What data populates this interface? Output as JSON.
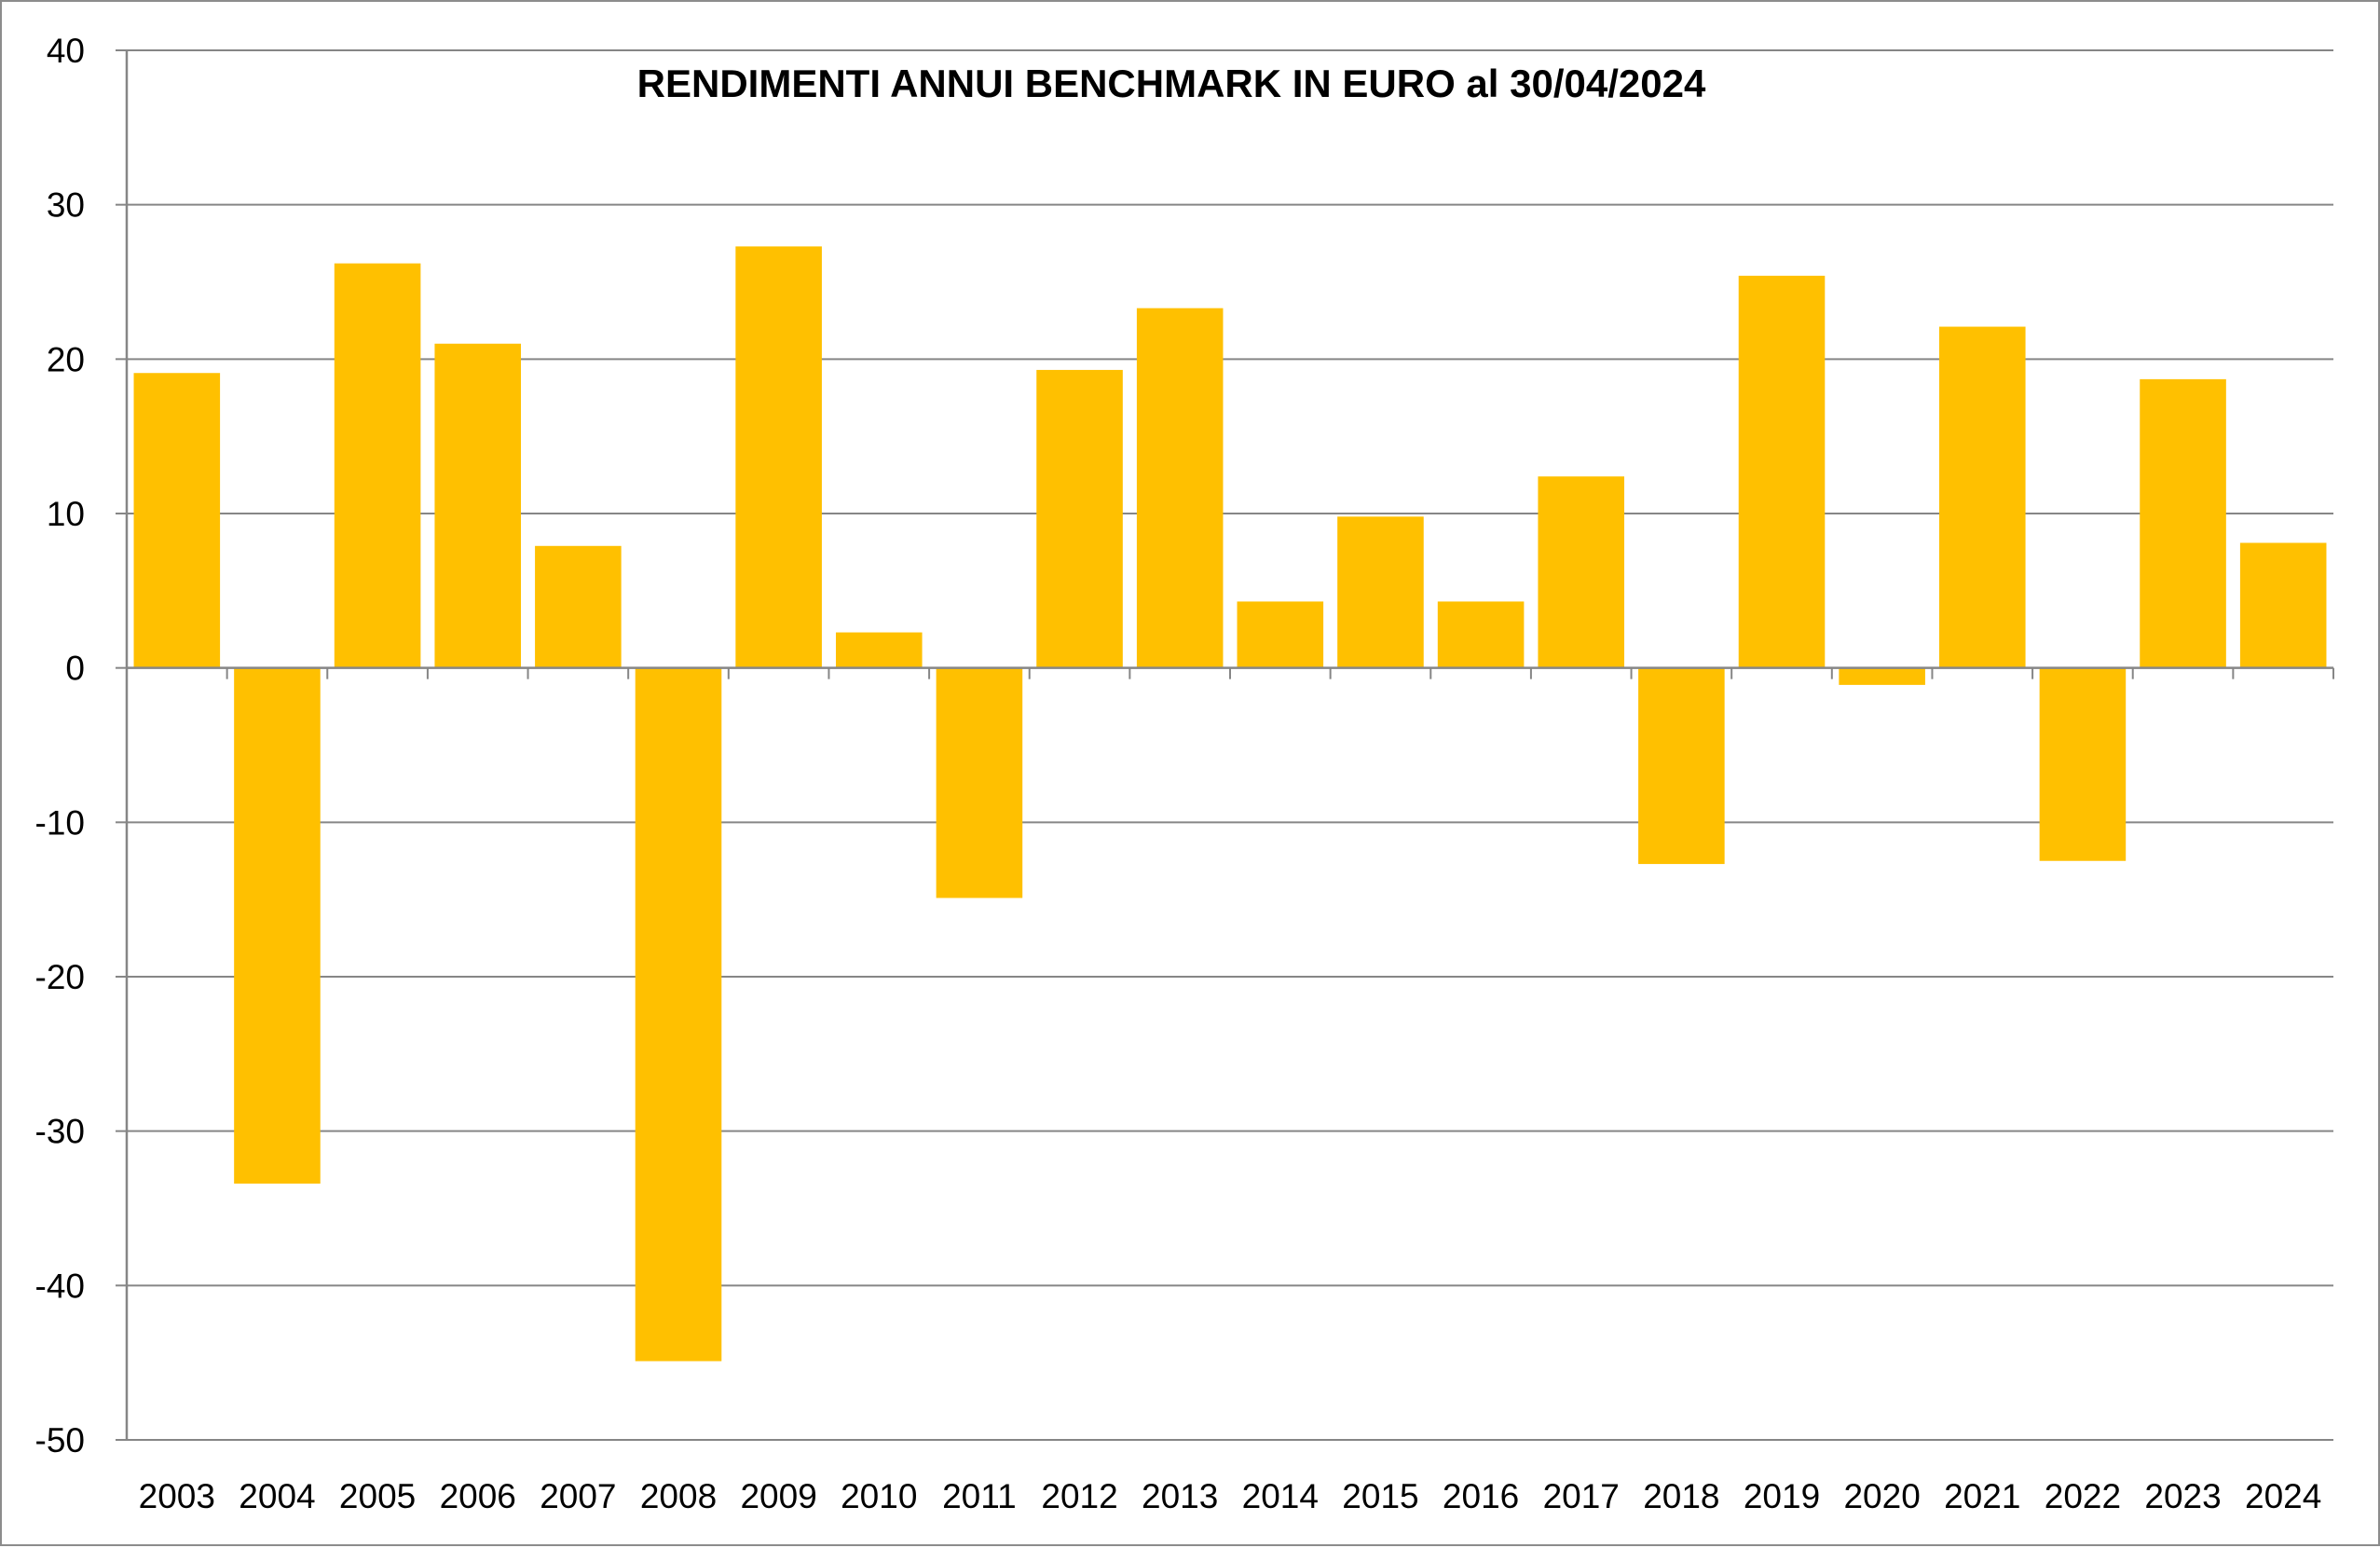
{
  "chart_data": {
    "type": "bar",
    "title": "RENDIMENTI ANNUI BENCHMARK IN EURO al 30/04/2024",
    "xlabel": "",
    "ylabel": "",
    "categories": [
      "2003",
      "2004",
      "2005",
      "2006",
      "2007",
      "2008",
      "2009",
      "2010",
      "2011",
      "2012",
      "2013",
      "2014",
      "2015",
      "2016",
      "2017",
      "2018",
      "2019",
      "2020",
      "2021",
      "2022",
      "2023",
      "2024"
    ],
    "values": [
      19.1,
      -33.4,
      26.2,
      21.0,
      7.9,
      -44.9,
      27.3,
      2.3,
      -14.9,
      19.3,
      23.3,
      4.3,
      9.8,
      4.3,
      12.4,
      -12.7,
      25.4,
      -1.1,
      22.1,
      -12.5,
      18.7,
      8.1
    ],
    "ylim": [
      -50,
      40
    ],
    "yticks": [
      40,
      30,
      20,
      10,
      0,
      -10,
      -20,
      -30,
      -40,
      -50
    ],
    "grid": true,
    "legend": "none",
    "colors": {
      "bar": "#FFC000",
      "grid": "#868686",
      "text": "#000000",
      "frame": "#8C8C8C"
    }
  }
}
